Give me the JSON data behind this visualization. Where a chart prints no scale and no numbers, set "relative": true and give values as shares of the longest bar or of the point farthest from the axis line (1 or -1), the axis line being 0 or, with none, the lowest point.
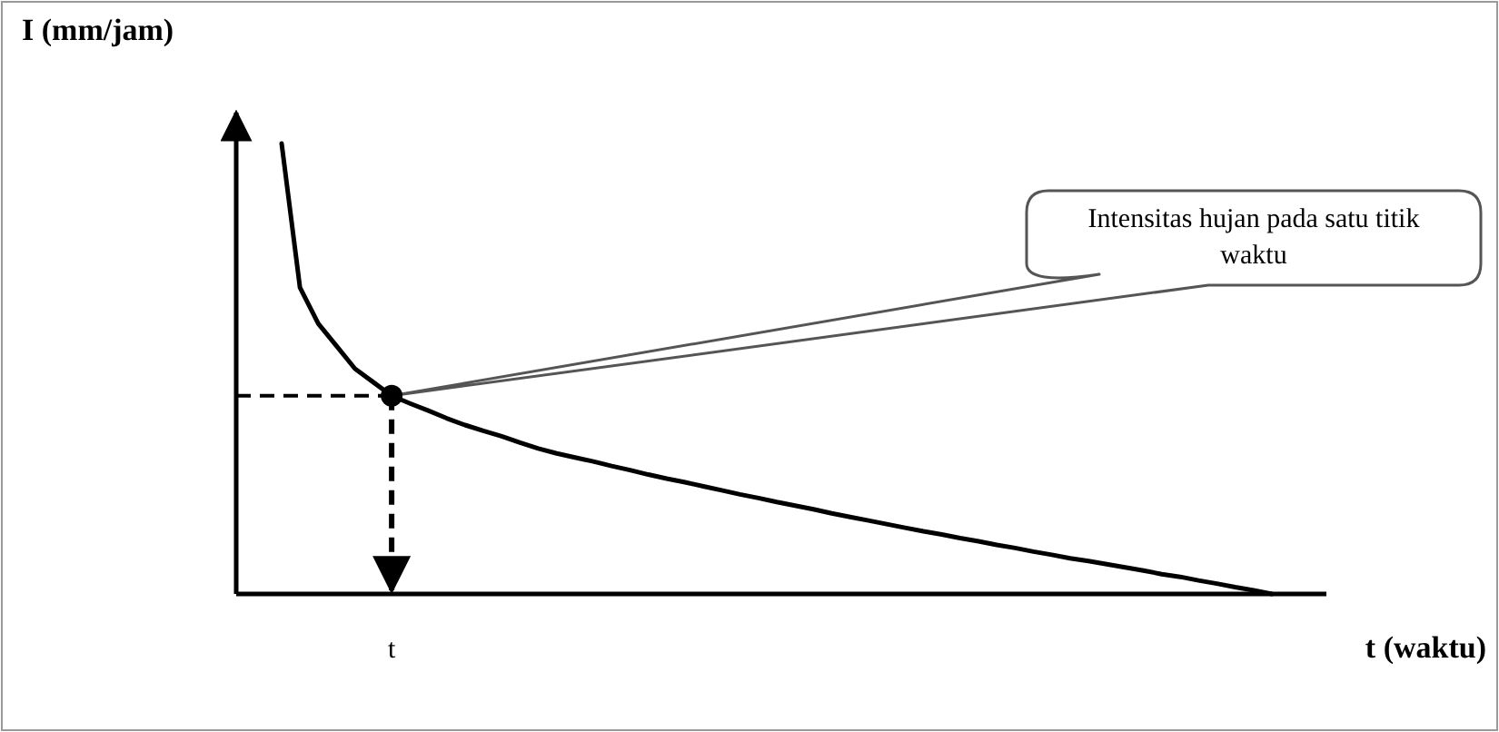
{
  "chart_data": {
    "type": "line",
    "relative": true,
    "xlabel": "t (waktu)",
    "ylabel": "I (mm/jam)",
    "categories": [
      null,
      null,
      null,
      null,
      null,
      null,
      null,
      null,
      null,
      null,
      null,
      null,
      null,
      null,
      null,
      null,
      null,
      null,
      null,
      null,
      null,
      null,
      null,
      null,
      null,
      null,
      null,
      null,
      null,
      null,
      null,
      null,
      null,
      null,
      null,
      null,
      null,
      null,
      null,
      null,
      null,
      null,
      null,
      null,
      null,
      null,
      null,
      null,
      null,
      null,
      null,
      null,
      null,
      null,
      null
    ],
    "series": [
      {
        "color": "#000000",
        "values": [
          1,
          0.68,
          0.6,
          0.55,
          0.5,
          0.47,
          0.44,
          0.423,
          0.407,
          0.39,
          0.375,
          0.362,
          0.35,
          0.336,
          0.323,
          0.312,
          0.303,
          0.294,
          0.284,
          0.275,
          0.265,
          0.256,
          0.248,
          0.239,
          0.23,
          0.221,
          0.213,
          0.204,
          0.196,
          0.188,
          0.179,
          0.171,
          0.163,
          0.155,
          0.147,
          0.139,
          0.132,
          0.124,
          0.117,
          0.109,
          0.102,
          0.094,
          0.087,
          0.079,
          0.073,
          0.066,
          0.059,
          0.052,
          0.044,
          0.038,
          0.03,
          0.023,
          0.015,
          0.008,
          0
        ]
      }
    ],
    "ref_lines": [
      {
        "axis": "y",
        "value": 0.44,
        "line_style": "dashed",
        "color": "#000000"
      }
    ],
    "annotations": [
      "Intensitas hujan pada satu titik waktu",
      "t"
    ]
  }
}
